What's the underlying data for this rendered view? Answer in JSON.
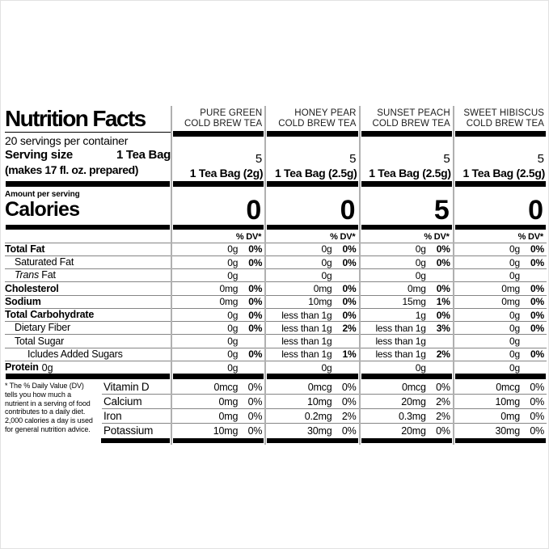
{
  "colors": {
    "text": "#000000",
    "thick_bar": "#000000",
    "hairline": "#858585",
    "column_separator": "#b0b0b0",
    "background": "#ffffff"
  },
  "header": {
    "title": "Nutrition Facts",
    "servings_per_container": "20 servings per container",
    "serving_size_label": "Serving size",
    "serving_size_value": "1 Tea Bag",
    "serving_size_note": "(makes 17 fl. oz. prepared)"
  },
  "calories_section": {
    "amount_per_serving": "Amount per serving",
    "calories_label": "Calories"
  },
  "dv_header": "% DV*",
  "products": [
    {
      "name_line1": "PURE GREEN",
      "name_line2": "COLD BREW TEA",
      "servings": "5",
      "serving_size": "1 Tea Bag (2g)",
      "calories": "0"
    },
    {
      "name_line1": "HONEY PEAR",
      "name_line2": "COLD BREW TEA",
      "servings": "5",
      "serving_size": "1 Tea Bag (2.5g)",
      "calories": "0"
    },
    {
      "name_line1": "SUNSET PEACH",
      "name_line2": "COLD BREW TEA",
      "servings": "5",
      "serving_size": "1 Tea Bag (2.5g)",
      "calories": "5"
    },
    {
      "name_line1": "SWEET HIBISCUS",
      "name_line2": "COLD BREW TEA",
      "servings": "5",
      "serving_size": "1 Tea Bag (2.5g)",
      "calories": "0"
    }
  ],
  "nutrient_rows": [
    {
      "label": "Total Fat",
      "style": "bold",
      "cells": [
        [
          "0g",
          "0%"
        ],
        [
          "0g",
          "0%"
        ],
        [
          "0g",
          "0%"
        ],
        [
          "0g",
          "0%"
        ]
      ]
    },
    {
      "label": "Saturated Fat",
      "style": "ind1",
      "cells": [
        [
          "0g",
          "0%"
        ],
        [
          "0g",
          "0%"
        ],
        [
          "0g",
          "0%"
        ],
        [
          "0g",
          "0%"
        ]
      ]
    },
    {
      "label": " Fat",
      "italic_prefix": "Trans",
      "style": "ind1",
      "cells": [
        [
          "0g",
          ""
        ],
        [
          "0g",
          ""
        ],
        [
          "0g",
          ""
        ],
        [
          "0g",
          ""
        ]
      ]
    },
    {
      "label": "Cholesterol",
      "style": "bold",
      "cells": [
        [
          "0mg",
          "0%"
        ],
        [
          "0mg",
          "0%"
        ],
        [
          "0mg",
          "0%"
        ],
        [
          "0mg",
          "0%"
        ]
      ]
    },
    {
      "label": "Sodium",
      "style": "bold",
      "cells": [
        [
          "0mg",
          "0%"
        ],
        [
          "10mg",
          "0%"
        ],
        [
          "15mg",
          "1%"
        ],
        [
          "0mg",
          "0%"
        ]
      ]
    },
    {
      "label": "Total Carbohydrate",
      "style": "bold",
      "cells": [
        [
          "0g",
          "0%"
        ],
        [
          "less than 1g",
          "0%"
        ],
        [
          "1g",
          "0%"
        ],
        [
          "0g",
          "0%"
        ]
      ]
    },
    {
      "label": "Dietary Fiber",
      "style": "ind1",
      "cells": [
        [
          "0g",
          "0%"
        ],
        [
          "less than 1g",
          "2%"
        ],
        [
          "less than 1g",
          "3%"
        ],
        [
          "0g",
          "0%"
        ]
      ]
    },
    {
      "label": "Total Sugar",
      "style": "ind1",
      "cells": [
        [
          "0g",
          ""
        ],
        [
          "less than 1g",
          ""
        ],
        [
          "less than 1g",
          ""
        ],
        [
          "0g",
          ""
        ]
      ]
    },
    {
      "label": "Icludes Added Sugars",
      "style": "ind2",
      "cells": [
        [
          "0g",
          "0%"
        ],
        [
          "less than 1g",
          "1%"
        ],
        [
          "less than 1g",
          "2%"
        ],
        [
          "0g",
          "0%"
        ]
      ]
    },
    {
      "label": "Protein",
      "style": "bold",
      "suffix": " 0g",
      "cells": [
        [
          "0g",
          ""
        ],
        [
          "0g",
          ""
        ],
        [
          "0g",
          ""
        ],
        [
          "0g",
          ""
        ]
      ]
    }
  ],
  "vitamin_rows": [
    {
      "label": "Vitamin D",
      "cells": [
        [
          "0mcg",
          "0%"
        ],
        [
          "0mcg",
          "0%"
        ],
        [
          "0mcg",
          "0%"
        ],
        [
          "0mcg",
          "0%"
        ]
      ]
    },
    {
      "label": "Calcium",
      "cells": [
        [
          "0mg",
          "0%"
        ],
        [
          "10mg",
          "0%"
        ],
        [
          "20mg",
          "2%"
        ],
        [
          "10mg",
          "0%"
        ]
      ]
    },
    {
      "label": "Iron",
      "cells": [
        [
          "0mg",
          "0%"
        ],
        [
          "0.2mg",
          "2%"
        ],
        [
          "0.3mg",
          "2%"
        ],
        [
          "0mg",
          "0%"
        ]
      ]
    },
    {
      "label": "Potassium",
      "cells": [
        [
          "10mg",
          "0%"
        ],
        [
          "30mg",
          "0%"
        ],
        [
          "20mg",
          "0%"
        ],
        [
          "30mg",
          "0%"
        ]
      ]
    }
  ],
  "footnote": "* The % Daily Value (DV) tells you how much a nutrient in a serving of food contributes to a daily diet. 2,000 calories a day is used for general nutrition advice."
}
